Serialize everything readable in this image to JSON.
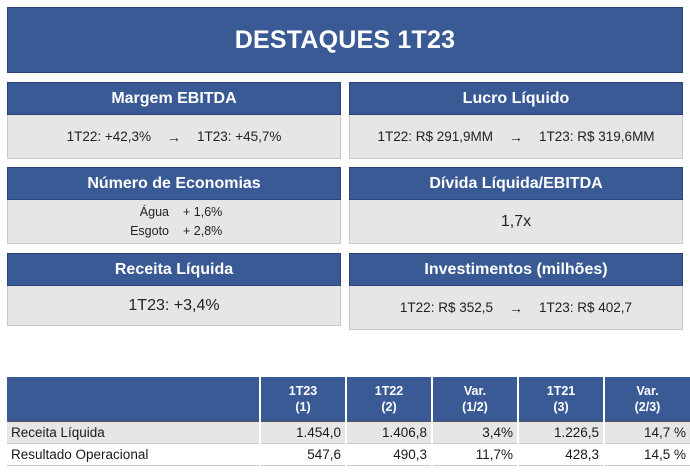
{
  "banner": {
    "title": "DESTAQUES 1T23"
  },
  "cards": {
    "margem": {
      "title": "Margem EBITDA",
      "from": "1T22: +42,3%",
      "to": "1T23: +45,7%"
    },
    "lucro": {
      "title": "Lucro Líquido",
      "from": "1T22: R$ 291,9MM",
      "to": "1T23: R$ 319,6MM"
    },
    "economias": {
      "title": "Número de Economias",
      "rows": [
        {
          "label": "Água",
          "value": "+ 1,6%"
        },
        {
          "label": "Esgoto",
          "value": "+ 2,8%"
        }
      ]
    },
    "divida": {
      "title": "Dívida Líquida/EBITDA",
      "value": "1,7x"
    },
    "receita": {
      "title": "Receita Líquida",
      "value": "1T23: +3,4%"
    },
    "investimentos": {
      "title": "Investimentos (milhões)",
      "from": "1T22: R$ 352,5",
      "to": "1T23: R$ 402,7"
    }
  },
  "arrow": "→",
  "table": {
    "headers": [
      {
        "l1": "",
        "l2": ""
      },
      {
        "l1": "1T23",
        "l2": "(1)"
      },
      {
        "l1": "1T22",
        "l2": "(2)"
      },
      {
        "l1": "Var.",
        "l2": "(1/2)"
      },
      {
        "l1": "1T21",
        "l2": "(3)"
      },
      {
        "l1": "Var.",
        "l2": "(2/3)"
      }
    ],
    "rows": [
      [
        "Receita Líquida",
        "1.454,0",
        "1.406,8",
        "3,4%",
        "1.226,5",
        "14,7 %"
      ],
      [
        "Resultado Operacional",
        "547,6",
        "490,3",
        "11,7%",
        "428,3",
        "14,5 %"
      ]
    ]
  }
}
